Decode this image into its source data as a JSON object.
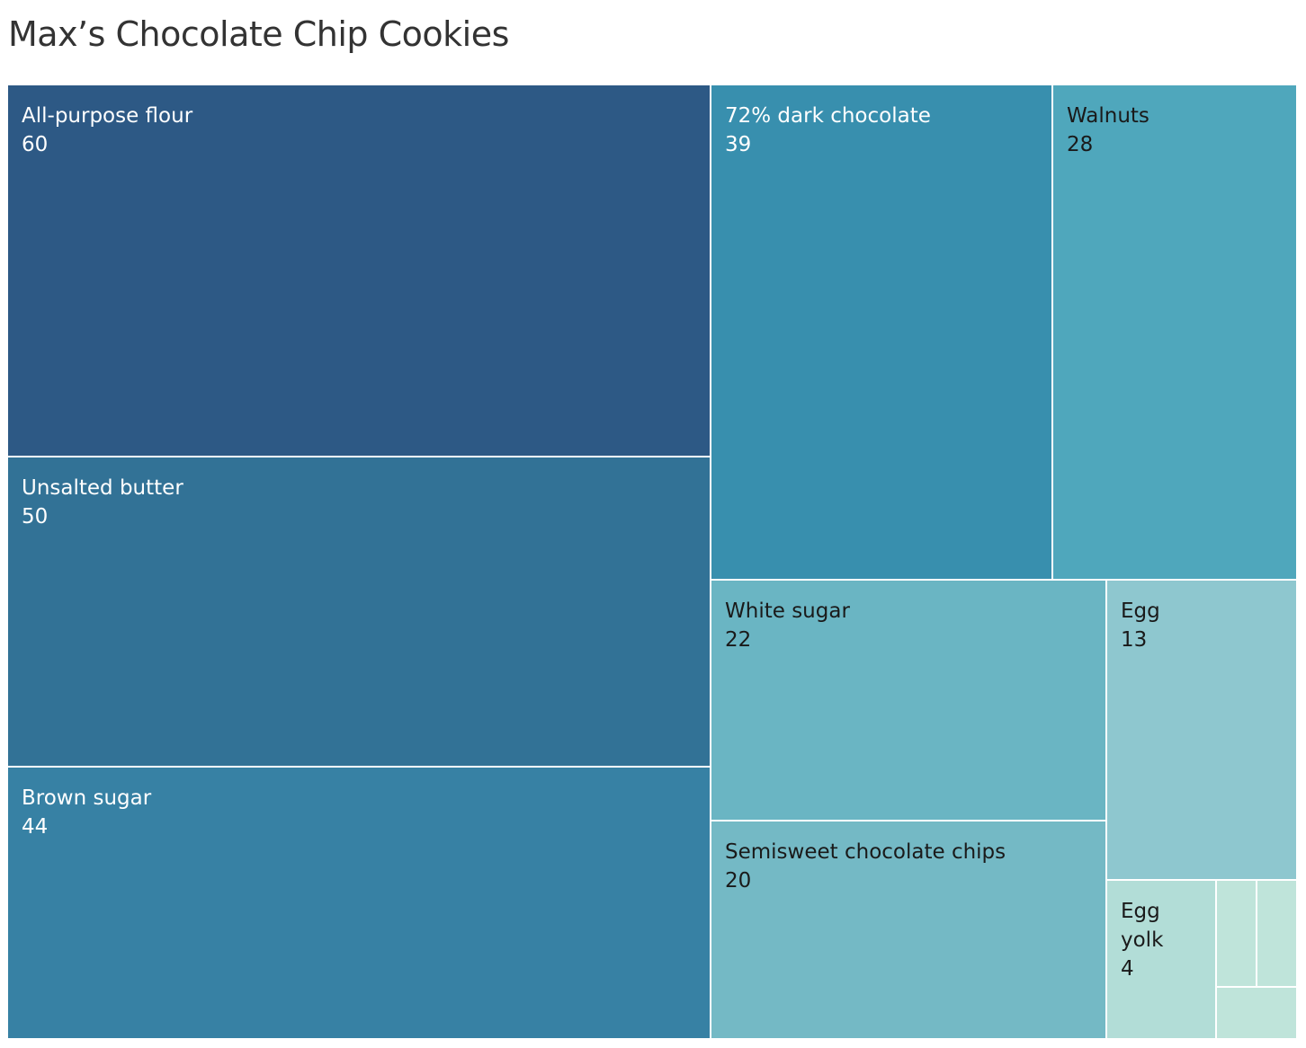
{
  "chart_data": {
    "type": "treemap",
    "title": "Max’s Chocolate Chip Cookies",
    "items": [
      {
        "label": "All-purpose flour",
        "value": 60,
        "color": "#2d5985",
        "text_color": "#ffffff"
      },
      {
        "label": "Unsalted butter",
        "value": 50,
        "color": "#327296",
        "text_color": "#ffffff"
      },
      {
        "label": "Brown sugar",
        "value": 44,
        "color": "#3781a4",
        "text_color": "#ffffff"
      },
      {
        "label": "72% dark chocolate",
        "value": 39,
        "color": "#388fae",
        "text_color": "#ffffff"
      },
      {
        "label": "Walnuts",
        "value": 28,
        "color": "#4fa7bc",
        "text_color": "#1a1a1a"
      },
      {
        "label": "White sugar",
        "value": 22,
        "color": "#6ab5c3",
        "text_color": "#1a1a1a"
      },
      {
        "label": "Semisweet chocolate chips",
        "value": 20,
        "color": "#74b9c5",
        "text_color": "#1a1a1a"
      },
      {
        "label": "Egg",
        "value": 13,
        "color": "#8ec7cf",
        "text_color": "#1a1a1a"
      },
      {
        "label": "Egg yolk",
        "value": 4,
        "color": "#b2ddd7",
        "text_color": "#1a1a1a"
      },
      {
        "label": "",
        "value": null,
        "color": "#bfe4da",
        "text_color": "#1a1a1a"
      },
      {
        "label": "",
        "value": null,
        "color": "#bfe4da",
        "text_color": "#1a1a1a"
      },
      {
        "label": "",
        "value": null,
        "color": "#bfe4da",
        "text_color": "#1a1a1a"
      }
    ]
  }
}
